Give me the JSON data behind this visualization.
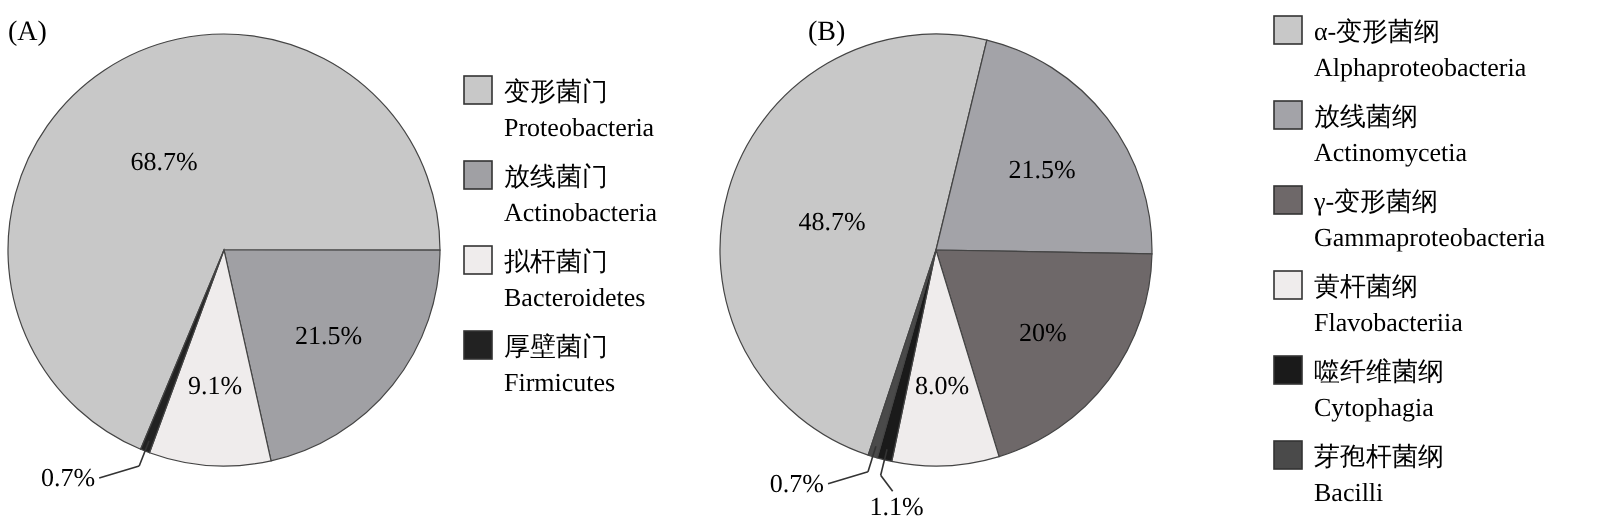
{
  "chart_data": [
    {
      "type": "pie",
      "title": "(A)",
      "categories": [
        "变形菌门\nProteobacteria",
        "放线菌门\nActinobacteria",
        "拟杆菌门\nBacteroidetes",
        "厚壁菌门\nFirmicutes"
      ],
      "values": [
        68.7,
        21.5,
        9.1,
        0.7
      ],
      "colors": [
        "#c8c8c8",
        "#a0a0a4",
        "#efecec",
        "#222222"
      ],
      "value_labels": [
        "68.7%",
        "21.5%",
        "9.1%",
        "0.7%"
      ],
      "legend": "right"
    },
    {
      "type": "pie",
      "title": "(B)",
      "categories": [
        "α-变形菌纲\nAlphaproteobacteria",
        "放线菌纲\nActinomycetia",
        "γ-变形菌纲\nGammaproteobacteria",
        "黄杆菌纲\nFlavobacteriia",
        "噬纤维菌纲\nCytophagia",
        "芽孢杆菌纲\nBacilli"
      ],
      "values": [
        48.7,
        21.5,
        20,
        8.0,
        1.1,
        0.7
      ],
      "colors": [
        "#c8c8c8",
        "#a3a3a8",
        "#6e6869",
        "#efecec",
        "#1a1a1a",
        "#4a4a4a"
      ],
      "value_labels": [
        "48.7%",
        "21.5%",
        "20%",
        "8.0%",
        "1.1%",
        "0.7%"
      ],
      "legend": "right"
    }
  ]
}
